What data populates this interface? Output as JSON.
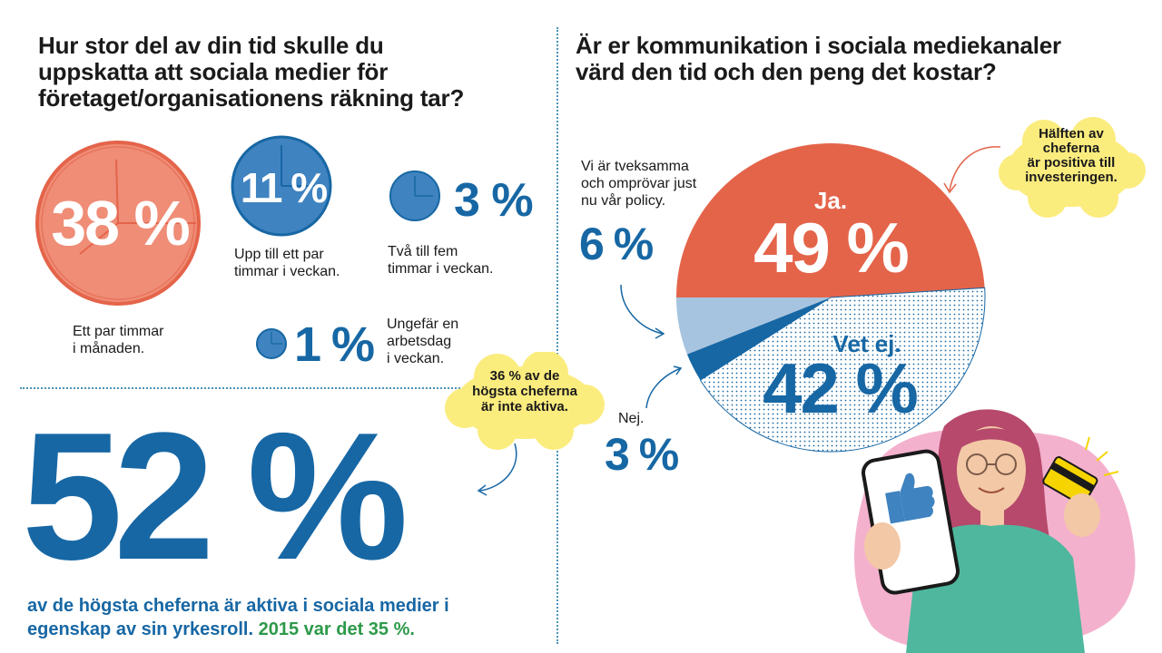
{
  "left": {
    "question": "Hur stor del av din tid skulle du\nuppskatta att sociala medier för\nföretaget/organisationens räkning tar?",
    "items": [
      {
        "value": "38 %",
        "label": "Ett par timmar\ni månaden."
      },
      {
        "value": "11 %",
        "label": "Upp till ett par\ntimmar i veckan."
      },
      {
        "value": "3 %",
        "label": "Två till fem\ntimmar i veckan."
      },
      {
        "value": "1 %",
        "label": "Ungefär en\narbetsdag\ni veckan."
      }
    ],
    "cloud_note": {
      "before": "36 % av de\nhögsta cheferna\när ",
      "emph": "inte",
      "after": " aktiva."
    },
    "headline_value": "52 %",
    "footnote_main": "av de högsta cheferna är aktiva i sociala medier i egenskap av sin yrkesroll.",
    "footnote_green": "2015 var det 35 %."
  },
  "right": {
    "question": "Är er kommunikation i sociala mediekanaler\nvärd den tid och den peng det kostar?",
    "cloud_note": "Hälften av\ncheferna\när positiva till\ninvesteringen.",
    "label_doubt": "Vi är tveksamma\noch omprövar just\nnu vår policy.",
    "label_no": "Nej."
  },
  "colors": {
    "coral": "#e4644a",
    "coral_light": "#ef8d77",
    "blue": "#1767a4",
    "blue_mid": "#3f83c0",
    "light_blue": "#a6c4e0",
    "green": "#2d9a4a",
    "yellow": "#fbec7e"
  },
  "chart_data": [
    {
      "type": "bubble",
      "categories": [
        "Ett par timmar i månaden.",
        "Upp till ett par timmar i veckan.",
        "Två till fem timmar i veckan.",
        "Ungefär en arbetsdag i veckan."
      ],
      "values": [
        38,
        11,
        3,
        1
      ],
      "unit": "%"
    },
    {
      "type": "pie",
      "slices": [
        {
          "label": "Ja.",
          "value": 49,
          "display": "49 %",
          "color": "#e4644a"
        },
        {
          "label": "Vet ej.",
          "value": 42,
          "display": "42 %",
          "color": "#ffffff"
        },
        {
          "label": "Nej.",
          "value": 3,
          "display": "3 %",
          "color": "#1767a4"
        },
        {
          "label": "Vi är tveksamma och omprövar just nu vår policy.",
          "value": 6,
          "display": "6 %",
          "color": "#a6c4e0"
        }
      ]
    }
  ]
}
